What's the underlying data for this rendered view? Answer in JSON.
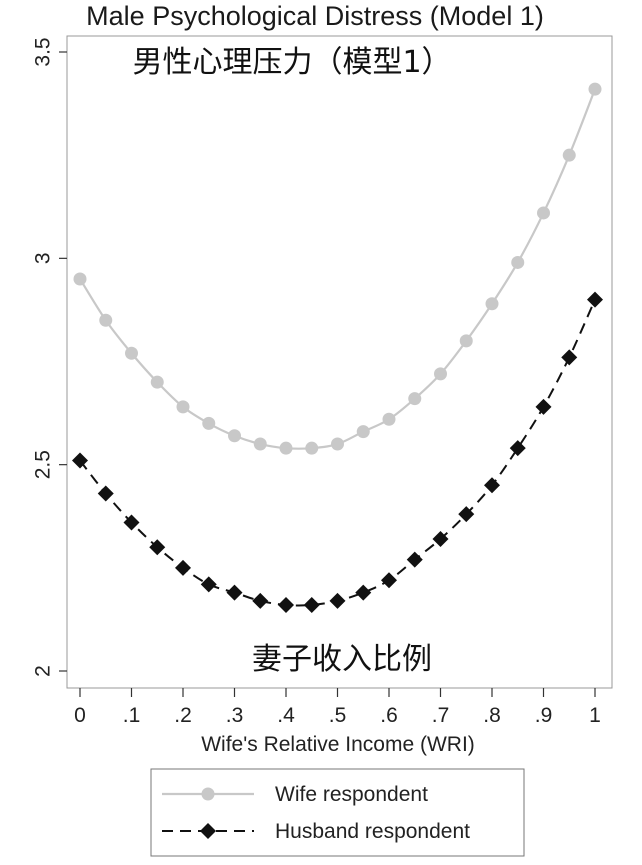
{
  "chart_data": {
    "type": "line",
    "title": "Male Psychological Distress (Model 1)",
    "annotations": {
      "top_chinese": "男性心理压力（模型1）",
      "bottom_chinese": "妻子收入比例"
    },
    "xlabel": "Wife's Relative Income (WRI)",
    "ylabel": "",
    "xlim": [
      0,
      1
    ],
    "ylim": [
      2,
      3.5
    ],
    "x_tick_values": [
      0,
      0.1,
      0.2,
      0.3,
      0.4,
      0.5,
      0.6,
      0.7,
      0.8,
      0.9,
      1
    ],
    "x_tick_labels": [
      "0",
      ".1",
      ".2",
      ".3",
      ".4",
      ".5",
      ".6",
      ".7",
      ".8",
      ".9",
      "1"
    ],
    "y_tick_values": [
      2,
      2.5,
      3,
      3.5
    ],
    "y_tick_labels": [
      "2",
      "2.5",
      "3",
      "3.5"
    ],
    "grid": false,
    "legend_position": "bottom",
    "x": [
      0,
      0.05,
      0.1,
      0.15,
      0.2,
      0.25,
      0.3,
      0.35,
      0.4,
      0.45,
      0.5,
      0.55,
      0.6,
      0.65,
      0.7,
      0.75,
      0.8,
      0.85,
      0.9,
      0.95,
      1
    ],
    "series": [
      {
        "name": "Wife respondent",
        "color": "#c8c8c8",
        "marker": "circle",
        "line_style": "solid",
        "values": [
          2.95,
          2.85,
          2.77,
          2.7,
          2.64,
          2.6,
          2.57,
          2.55,
          2.54,
          2.54,
          2.55,
          2.58,
          2.61,
          2.66,
          2.72,
          2.8,
          2.89,
          2.99,
          3.11,
          3.25,
          3.41
        ]
      },
      {
        "name": "Husband respondent",
        "color": "#111111",
        "marker": "diamond",
        "line_style": "dashed",
        "values": [
          2.51,
          2.43,
          2.36,
          2.3,
          2.25,
          2.21,
          2.19,
          2.17,
          2.16,
          2.16,
          2.17,
          2.19,
          2.22,
          2.27,
          2.32,
          2.38,
          2.45,
          2.54,
          2.64,
          2.76,
          2.9
        ]
      }
    ]
  }
}
